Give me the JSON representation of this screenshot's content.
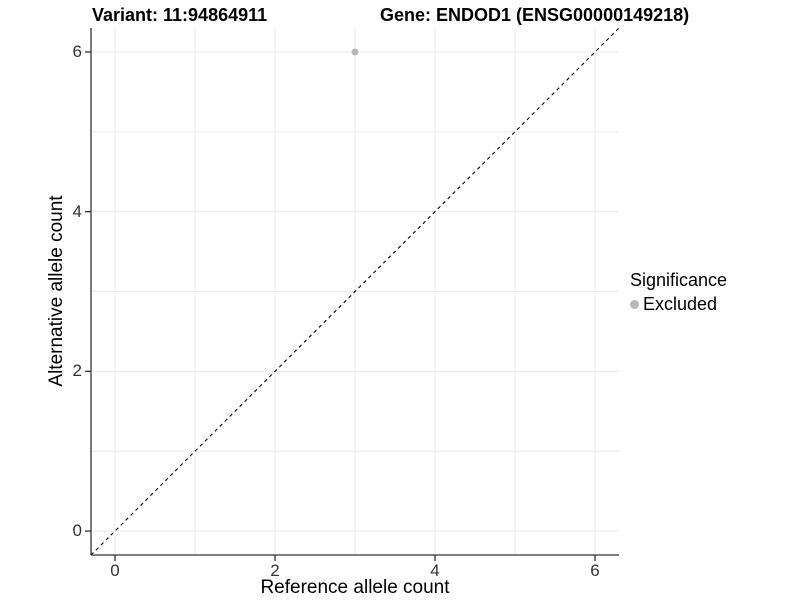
{
  "titles": {
    "variant": "Variant: 11:94864911",
    "gene": "Gene: ENDOD1 (ENSG00000149218)"
  },
  "chart_data": {
    "type": "scatter",
    "title": "Variant: 11:94864911    Gene: ENDOD1 (ENSG00000149218)",
    "xlabel": "Reference allele count",
    "ylabel": "Alternative allele count",
    "xlim": [
      -0.3,
      6.3
    ],
    "ylim": [
      -0.3,
      6.3
    ],
    "x_ticks": [
      0,
      2,
      4,
      6
    ],
    "y_ticks": [
      0,
      2,
      4,
      6
    ],
    "gridlines_x": [
      0,
      1,
      2,
      3,
      4,
      5,
      6
    ],
    "gridlines_y": [
      0,
      1,
      2,
      3,
      4,
      5,
      6
    ],
    "grid": true,
    "points": [
      {
        "x": 3,
        "y": 6,
        "series": "Excluded"
      }
    ],
    "reference_line": {
      "type": "identity",
      "slope": 1,
      "intercept": 0,
      "style": "dashed"
    },
    "legend": {
      "title": "Significance",
      "position": "right",
      "entries": [
        {
          "label": "Excluded",
          "color": "#b7b7b7"
        }
      ]
    },
    "colors": {
      "point": "#b7b7b7",
      "grid": "#ebebeb",
      "axis": "#333333",
      "reference_line": "#000000",
      "background": "#ffffff"
    }
  }
}
